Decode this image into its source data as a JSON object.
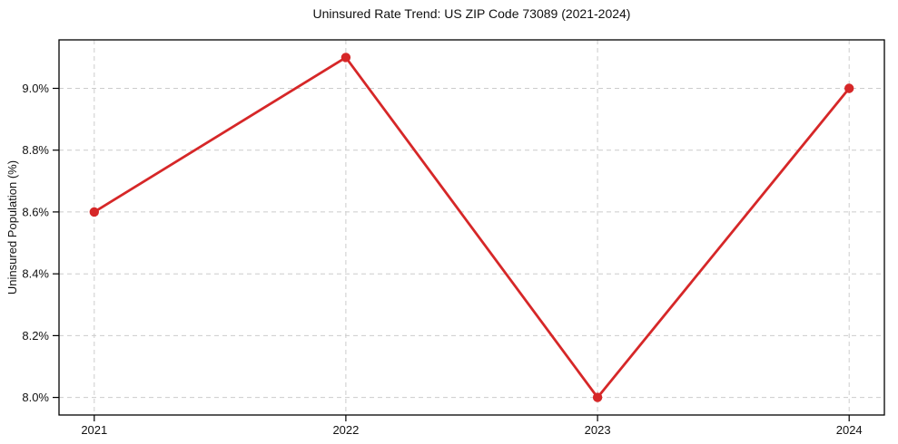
{
  "chart_data": {
    "type": "line",
    "title": "Uninsured Rate Trend: US ZIP Code 73089 (2021-2024)",
    "xlabel": "",
    "ylabel": "Uninsured Population (%)",
    "x": [
      2021,
      2022,
      2023,
      2024
    ],
    "x_ticks": [
      "2021",
      "2022",
      "2023",
      "2024"
    ],
    "x_tick_values": [
      2021,
      2022,
      2023,
      2024
    ],
    "y_ticks": [
      "8.0%",
      "8.2%",
      "8.4%",
      "8.6%",
      "8.8%",
      "9.0%"
    ],
    "y_tick_values": [
      8.0,
      8.2,
      8.4,
      8.6,
      8.8,
      9.0
    ],
    "series": [
      {
        "name": "uninsured_rate_percent",
        "values": [
          8.6,
          9.1,
          8.0,
          9.0
        ]
      }
    ],
    "xlim": [
      2020.86,
      2024.14
    ],
    "ylim": [
      7.943,
      9.157
    ],
    "grid": true,
    "grid_style": "dashed",
    "legend": "none",
    "line_color": "#d62728",
    "marker": "circle",
    "grid_color": "#cccccc",
    "axis_color": "#000000",
    "text_color": "#111111",
    "background": "#ffffff"
  }
}
